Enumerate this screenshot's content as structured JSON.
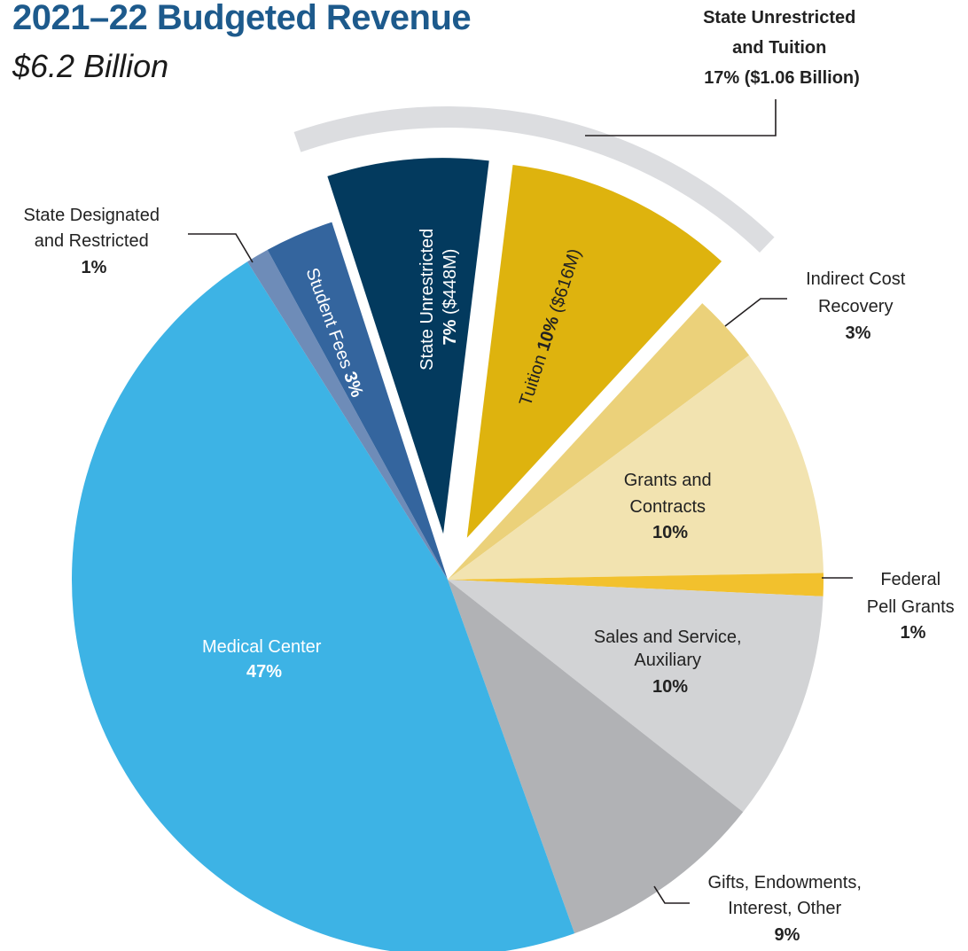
{
  "header": {
    "title": "2021–22 Budgeted Revenue",
    "subtitle": "$6.2 Billion"
  },
  "callout": {
    "line1": "State Unrestricted",
    "line2": "and Tuition",
    "line3": "17% ($1.06 Billion)"
  },
  "colors": {
    "title": "#1d5a8c",
    "bracket": "#dcdde0",
    "leader": "#231f20"
  },
  "chart_data": {
    "type": "pie",
    "title": "2021–22 Budgeted Revenue",
    "subtitle": "$6.2 Billion",
    "slices": [
      {
        "key": "tuition",
        "label": "Tuition",
        "value": 10,
        "amount": "$616M",
        "color": "#deb30e",
        "exploded": true
      },
      {
        "key": "indirect",
        "label": "Indirect Cost Recovery",
        "value": 3,
        "color": "#ebd17a"
      },
      {
        "key": "grants",
        "label": "Grants and Contracts",
        "value": 10,
        "color": "#f2e3b0"
      },
      {
        "key": "pell",
        "label": "Federal Pell Grants",
        "value": 1,
        "color": "#f2c12d"
      },
      {
        "key": "sales",
        "label": "Sales and Service, Auxiliary",
        "value": 10,
        "color": "#d2d3d5"
      },
      {
        "key": "gifts",
        "label": "Gifts, Endowments, Interest, Other",
        "value": 9,
        "color": "#b1b2b5"
      },
      {
        "key": "medical",
        "label": "Medical Center",
        "value": 47,
        "color": "#3db3e5"
      },
      {
        "key": "designated",
        "label": "State Designated and Restricted",
        "value": 1,
        "color": "#6e8cb8"
      },
      {
        "key": "fees",
        "label": "Student Fees",
        "value": 3,
        "color": "#34659e"
      },
      {
        "key": "stateunr",
        "label": "State Unrestricted",
        "value": 7,
        "amount": "$448M",
        "color": "#033a5e",
        "exploded": true
      }
    ],
    "labels": {
      "stateunr": {
        "line1": "State Unrestricted",
        "pct": "7%",
        "amt": "($448M)"
      },
      "tuition": {
        "line1": "Tuition",
        "pct": "10%",
        "amt": "($616M)"
      },
      "fees": {
        "line1": "Student Fees",
        "pct": "3%"
      },
      "designated": {
        "line1": "State Designated",
        "line2": "and Restricted",
        "pct": "1%"
      },
      "indirect": {
        "line1": "Indirect Cost",
        "line2": "Recovery",
        "pct": "3%"
      },
      "grants": {
        "line1": "Grants and",
        "line2": "Contracts",
        "pct": "10%"
      },
      "pell": {
        "line1": "Federal",
        "line2": "Pell Grants",
        "pct": "1%"
      },
      "sales": {
        "line1": "Sales and Service,",
        "line2": "Auxiliary",
        "pct": "10%"
      },
      "gifts": {
        "line1": "Gifts, Endowments,",
        "line2": "Interest, Other",
        "pct": "9%"
      },
      "medical": {
        "line1": "Medical Center",
        "pct": "47%"
      }
    }
  }
}
